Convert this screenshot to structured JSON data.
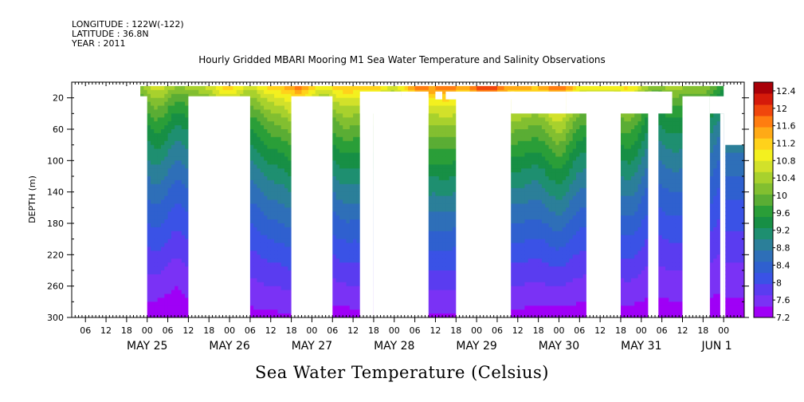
{
  "meta": {
    "longitude": "LONGITUDE : 122W(-122)",
    "latitude": "LATITUDE : 36.8N",
    "year": "YEAR : 2011"
  },
  "title": "Hourly Gridded MBARI Mooring M1 Sea Water Temperature and Salinity Observations",
  "bottom_title": "Sea Water Temperature (Celsius)",
  "colors": {
    "palette": [
      "#9f00f6",
      "#7a32f5",
      "#5a3cf0",
      "#3a52e6",
      "#2f60cf",
      "#2e6fb8",
      "#2b7f99",
      "#1e8f70",
      "#178f45",
      "#2a9e38",
      "#5aad34",
      "#82bf30",
      "#a8d12d",
      "#d2e12a",
      "#f3f01f",
      "#ffd21b",
      "#ffaa16",
      "#ff7d10",
      "#f0460c",
      "#d51a0a",
      "#a90008"
    ]
  },
  "chart_data": {
    "type": "heatmap",
    "title": "Hourly Gridded MBARI Mooring M1 Sea Water Temperature and Salinity Observations",
    "xlabel": "",
    "ylabel": "DEPTH (m)",
    "ylim": [
      300,
      0
    ],
    "y_ticks": [
      20,
      60,
      100,
      140,
      180,
      220,
      260,
      300
    ],
    "x_hour_ticks": [
      "06",
      "12",
      "18",
      "00",
      "06",
      "12",
      "18",
      "00",
      "06",
      "12",
      "18",
      "00",
      "06",
      "12",
      "18",
      "00",
      "06",
      "12",
      "18",
      "00",
      "06",
      "12",
      "18",
      "00",
      "06",
      "12",
      "18",
      "00",
      "06",
      "12",
      "18",
      "00"
    ],
    "x_day_labels": [
      "MAY 25",
      "MAY 26",
      "MAY 27",
      "MAY 28",
      "MAY 29",
      "MAY 30",
      "MAY 31",
      "JUN  1"
    ],
    "colorbar": {
      "min": 7.2,
      "max": 12.6,
      "labels": [
        "12.4",
        "12",
        "11.6",
        "11.2",
        "10.8",
        "10.4",
        "10",
        "9.6",
        "9.2",
        "8.8",
        "8.4",
        "8",
        "7.6",
        "7.2"
      ]
    },
    "series_description": "Temperature decreases with depth; warm surface layer (11-12.6 C) near 10-30 m, cooling to about 7.2 C at 300 m.",
    "data_columns": [
      {
        "t": 22,
        "surface": 10.6,
        "bottom": 7.3
      },
      {
        "t": 30,
        "surface": 10.8,
        "bottom": 7.2
      },
      {
        "t": 34,
        "surface": 10.9,
        "bottom": 7.3
      },
      {
        "t": 66,
        "surface": 11.8,
        "bottom": 7.4
      },
      {
        "t": 74,
        "surface": 11.6,
        "bottom": 7.3
      },
      {
        "t": 94,
        "surface": 11.5,
        "bottom": 7.4
      },
      {
        "t": 112,
        "surface": 12.3,
        "bottom": 7.4
      },
      {
        "t": 142,
        "surface": 11.9,
        "bottom": 7.3
      },
      {
        "t": 168,
        "surface": 10.9,
        "bottom": 7.3
      },
      {
        "t": 184,
        "surface": 10.3,
        "bottom": 7.3
      }
    ]
  }
}
